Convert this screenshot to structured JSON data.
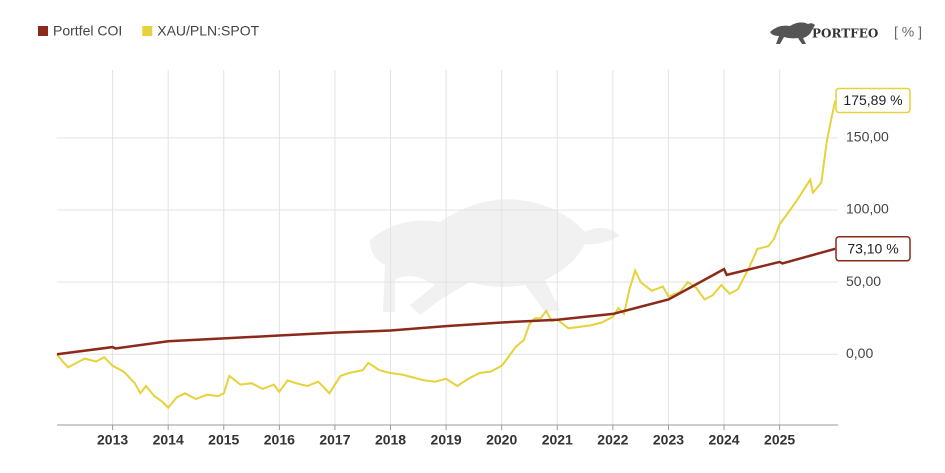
{
  "brand": "PORTFEO",
  "unit": "[ % ]",
  "chart_data": {
    "type": "line",
    "xlim": [
      2012,
      2026.05
    ],
    "ylim": [
      -49,
      197
    ],
    "xticks": [
      2013,
      2014,
      2015,
      2016,
      2017,
      2018,
      2019,
      2020,
      2021,
      2022,
      2023,
      2024,
      2025
    ],
    "yticks": [
      {
        "value": 0,
        "label": "0,00"
      },
      {
        "value": 50,
        "label": "50,00"
      },
      {
        "value": 100,
        "label": "100,00"
      },
      {
        "value": 150,
        "label": "150,00"
      }
    ],
    "grid": true,
    "legend": "top-left",
    "series": [
      {
        "name": "Portfel COI",
        "color": "#8b2a1a",
        "x": [
          2012.0,
          2013.0,
          2013.05,
          2014.0,
          2015.0,
          2016.0,
          2017.0,
          2018.0,
          2019.0,
          2020.0,
          2021.0,
          2022.0,
          2023.0,
          2024.0,
          2024.05,
          2025.0,
          2025.05,
          2026.0
        ],
        "values": [
          0,
          5,
          4,
          9,
          11,
          13,
          15,
          16.5,
          19.5,
          22,
          24,
          28,
          38,
          59,
          55,
          64,
          63,
          73.1
        ],
        "value_labels": [
          null,
          null,
          null,
          null,
          null,
          null,
          null,
          null,
          null,
          null,
          null,
          null,
          null,
          null,
          null,
          null,
          null,
          "73,10 %"
        ]
      },
      {
        "name": "XAU/PLN:SPOT",
        "color": "#e6d23a",
        "x": [
          2012.0,
          2012.1,
          2012.2,
          2012.35,
          2012.5,
          2012.7,
          2012.85,
          2013.0,
          2013.2,
          2013.4,
          2013.5,
          2013.6,
          2013.75,
          2013.9,
          2014.0,
          2014.15,
          2014.3,
          2014.5,
          2014.7,
          2014.9,
          2015.0,
          2015.1,
          2015.3,
          2015.5,
          2015.7,
          2015.9,
          2016.0,
          2016.15,
          2016.3,
          2016.5,
          2016.7,
          2016.9,
          2017.1,
          2017.25,
          2017.5,
          2017.6,
          2017.8,
          2018.0,
          2018.2,
          2018.4,
          2018.6,
          2018.8,
          2019.0,
          2019.2,
          2019.4,
          2019.6,
          2019.8,
          2020.0,
          2020.1,
          2020.25,
          2020.4,
          2020.5,
          2020.6,
          2020.7,
          2020.8,
          2020.9,
          2021.0,
          2021.2,
          2021.4,
          2021.6,
          2021.8,
          2022.0,
          2022.1,
          2022.2,
          2022.3,
          2022.4,
          2022.5,
          2022.7,
          2022.9,
          2023.0,
          2023.2,
          2023.35,
          2023.5,
          2023.65,
          2023.8,
          2023.95,
          2024.1,
          2024.25,
          2024.45,
          2024.6,
          2024.8,
          2024.9,
          2025.0,
          2025.15,
          2025.3,
          2025.45,
          2025.55,
          2025.6,
          2025.75,
          2025.85,
          2025.93,
          2026.0
        ],
        "values": [
          0,
          -5,
          -9,
          -6,
          -3,
          -5,
          -2,
          -8,
          -12,
          -20,
          -27,
          -22,
          -29,
          -33,
          -37,
          -30,
          -27,
          -31,
          -28,
          -29,
          -27,
          -15,
          -21,
          -20,
          -24,
          -21,
          -26,
          -18,
          -20,
          -22,
          -19,
          -27,
          -15,
          -13,
          -11,
          -6,
          -11,
          -13,
          -14,
          -16,
          -18,
          -19,
          -17,
          -22,
          -17,
          -13,
          -12,
          -8,
          -3,
          5,
          10,
          21,
          25,
          25,
          30,
          23,
          24,
          18,
          19,
          20,
          22,
          26,
          32,
          28,
          45,
          58,
          50,
          44,
          47,
          40,
          43,
          50,
          46,
          38,
          41,
          48,
          42,
          45,
          60,
          73,
          75,
          80,
          90,
          98,
          106,
          115,
          121,
          112,
          119,
          148,
          163,
          175.89
        ],
        "value_labels": [
          null,
          null,
          null,
          null,
          null,
          null,
          null,
          null,
          null,
          null,
          null,
          null,
          null,
          null,
          null,
          null,
          null,
          null,
          null,
          null,
          null,
          null,
          null,
          null,
          null,
          null,
          null,
          null,
          null,
          null,
          null,
          null,
          null,
          null,
          null,
          null,
          null,
          null,
          null,
          null,
          null,
          null,
          null,
          null,
          null,
          null,
          null,
          null,
          null,
          null,
          null,
          null,
          null,
          null,
          null,
          null,
          null,
          null,
          null,
          null,
          null,
          null,
          null,
          null,
          null,
          null,
          null,
          null,
          null,
          null,
          null,
          null,
          null,
          null,
          null,
          null,
          null,
          null,
          null,
          null,
          null,
          null,
          null,
          null,
          null,
          null,
          null,
          null,
          null,
          null,
          null,
          "175,89 %"
        ]
      }
    ]
  }
}
